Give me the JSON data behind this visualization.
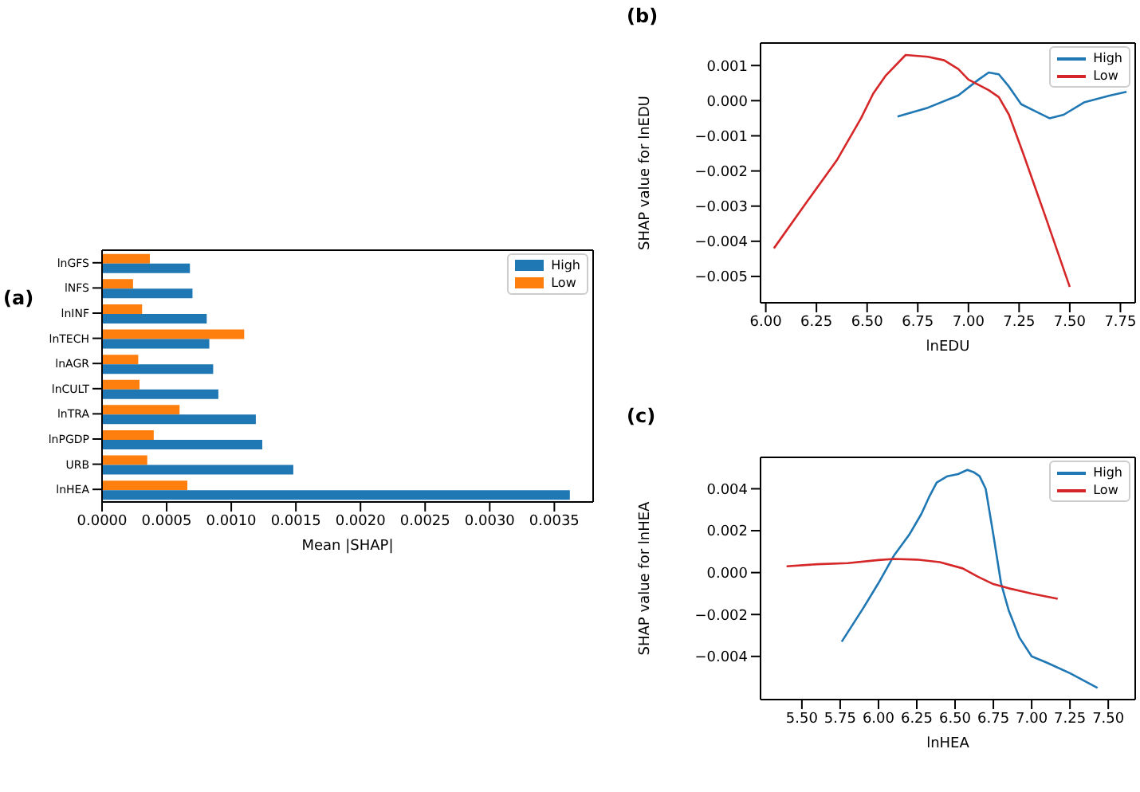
{
  "chart_data": [
    {
      "type": "bar",
      "title": "(a)",
      "orientation": "horizontal",
      "categories": [
        "lnGFS",
        "lNFS",
        "lnINF",
        "lnTECH",
        "lnAGR",
        "lnCULT",
        "lnTRA",
        "lnPGDP",
        "URB",
        "lnHEA"
      ],
      "xlabel": "Mean |SHAP|",
      "xlim": [
        0,
        0.0038
      ],
      "xticks": [
        {
          "value": 0,
          "label": "0.0000"
        },
        {
          "value": 0.0005,
          "label": "0.0005"
        },
        {
          "value": 0.001,
          "label": "0.0010"
        },
        {
          "value": 0.0015,
          "label": "0.0015"
        },
        {
          "value": 0.002,
          "label": "0.0020"
        },
        {
          "value": 0.0025,
          "label": "0.0025"
        },
        {
          "value": 0.003,
          "label": "0.0030"
        },
        {
          "value": 0.0035,
          "label": "0.0035"
        }
      ],
      "legend": "top right",
      "series": [
        {
          "name": "High",
          "color": "#1f77b4",
          "values": [
            0.00068,
            0.0007,
            0.00081,
            0.00083,
            0.00086,
            0.0009,
            0.00119,
            0.00124,
            0.00148,
            0.00362
          ]
        },
        {
          "name": "Low",
          "color": "#ff7f0e",
          "values": [
            0.00037,
            0.00024,
            0.00031,
            0.0011,
            0.00028,
            0.00029,
            0.0006,
            0.0004,
            0.00035,
            0.00066
          ]
        }
      ]
    },
    {
      "type": "line",
      "title": "(b)",
      "xlabel": "lnEDU",
      "ylabel": "SHAP value for lnEDU",
      "xlim": [
        5.974,
        7.823
      ],
      "ylim": [
        -0.00575,
        0.00164
      ],
      "xticks": [
        {
          "value": 6,
          "label": "6.00"
        },
        {
          "value": 6.25,
          "label": "6.25"
        },
        {
          "value": 6.5,
          "label": "6.50"
        },
        {
          "value": 6.75,
          "label": "6.75"
        },
        {
          "value": 7,
          "label": "7.00"
        },
        {
          "value": 7.25,
          "label": "7.25"
        },
        {
          "value": 7.5,
          "label": "7.50"
        },
        {
          "value": 7.75,
          "label": "7.75"
        }
      ],
      "yticks": [
        {
          "value": -0.005,
          "label": "−0.005"
        },
        {
          "value": -0.004,
          "label": "−0.004"
        },
        {
          "value": -0.003,
          "label": "−0.003"
        },
        {
          "value": -0.002,
          "label": "−0.002"
        },
        {
          "value": -0.001,
          "label": "−0.001"
        },
        {
          "value": 0,
          "label": "0.000"
        },
        {
          "value": 0.001,
          "label": "0.001"
        }
      ],
      "legend": "top right",
      "series": [
        {
          "name": "High",
          "color": "#1f77b4",
          "x": [
            6.65,
            6.8,
            6.95,
            7.05,
            7.1,
            7.15,
            7.2,
            7.26,
            7.33,
            7.4,
            7.47,
            7.57,
            7.7,
            7.78
          ],
          "values": [
            -0.00045,
            -0.0002,
            0.00015,
            0.0006,
            0.0008,
            0.00075,
            0.0004,
            -0.0001,
            -0.0003,
            -0.0005,
            -0.0004,
            -5e-05,
            0.00015,
            0.00025
          ]
        },
        {
          "name": "Low",
          "color": "#d62728",
          "x": [
            6.04,
            6.2,
            6.35,
            6.47,
            6.53,
            6.59,
            6.69,
            6.8,
            6.88,
            6.95,
            7.0,
            7.1,
            7.15,
            7.2,
            7.27,
            7.38,
            7.5
          ],
          "values": [
            -0.0042,
            -0.0029,
            -0.0017,
            -0.0005,
            0.0002,
            0.0007,
            0.0013,
            0.00125,
            0.00115,
            0.0009,
            0.0006,
            0.0003,
            0.0001,
            -0.0004,
            -0.0015,
            -0.0033,
            -0.0053
          ]
        }
      ]
    },
    {
      "type": "line",
      "title": "(c)",
      "xlabel": "lnHEA",
      "ylabel": "SHAP value for lnHEA",
      "xlim": [
        5.23,
        7.676
      ],
      "ylim": [
        -0.00606,
        0.0055
      ],
      "xticks": [
        {
          "value": 5.5,
          "label": "5.50"
        },
        {
          "value": 5.75,
          "label": "5.75"
        },
        {
          "value": 6,
          "label": "6.00"
        },
        {
          "value": 6.25,
          "label": "6.25"
        },
        {
          "value": 6.5,
          "label": "6.50"
        },
        {
          "value": 6.75,
          "label": "6.75"
        },
        {
          "value": 7,
          "label": "7.00"
        },
        {
          "value": 7.25,
          "label": "7.25"
        },
        {
          "value": 7.5,
          "label": "7.50"
        }
      ],
      "yticks": [
        {
          "value": -0.004,
          "label": "−0.004"
        },
        {
          "value": -0.002,
          "label": "−0.002"
        },
        {
          "value": 0,
          "label": "0.000"
        },
        {
          "value": 0.002,
          "label": "0.002"
        },
        {
          "value": 0.004,
          "label": "0.004"
        }
      ],
      "legend": "top right",
      "series": [
        {
          "name": "High",
          "color": "#1f77b4",
          "x": [
            5.76,
            5.9,
            6.0,
            6.1,
            6.2,
            6.28,
            6.33,
            6.38,
            6.45,
            6.52,
            6.58,
            6.62,
            6.66,
            6.7,
            6.75,
            6.8,
            6.85,
            6.92,
            7.0,
            7.1,
            7.25,
            7.43
          ],
          "values": [
            -0.0033,
            -0.0017,
            -0.0005,
            0.0008,
            0.0018,
            0.0028,
            0.0036,
            0.0043,
            0.0046,
            0.0047,
            0.0049,
            0.0048,
            0.0046,
            0.004,
            0.0018,
            -0.0005,
            -0.0018,
            -0.0031,
            -0.004,
            -0.0043,
            -0.0048,
            -0.0055
          ]
        },
        {
          "name": "Low",
          "color": "#d62728",
          "x": [
            5.4,
            5.6,
            5.8,
            6.0,
            6.1,
            6.25,
            6.4,
            6.55,
            6.65,
            6.75,
            6.85,
            7.0,
            7.17
          ],
          "values": [
            0.0003,
            0.0004,
            0.00045,
            0.0006,
            0.00065,
            0.00062,
            0.0005,
            0.0002,
            -0.0002,
            -0.00055,
            -0.00075,
            -0.001,
            -0.00125
          ]
        }
      ]
    }
  ]
}
